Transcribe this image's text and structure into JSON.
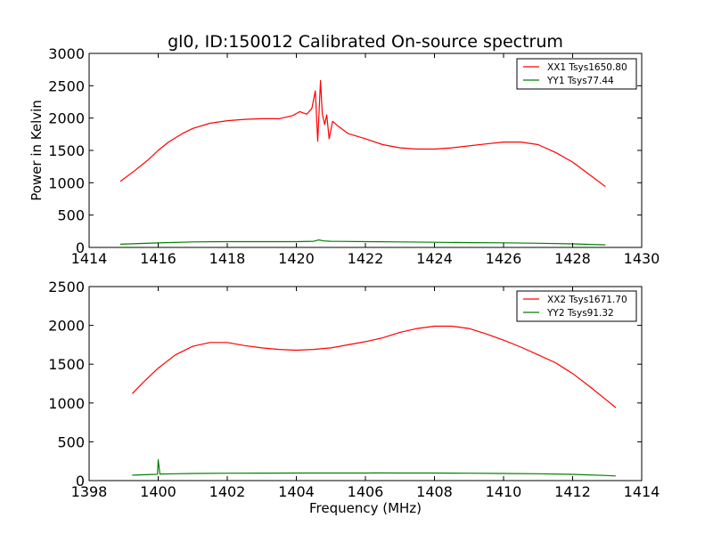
{
  "chart_data": [
    {
      "type": "line",
      "title": "gl0, ID:150012 Calibrated On-source spectrum",
      "xlabel": "",
      "ylabel": "Power in Kelvin",
      "xlim": [
        1414,
        1430
      ],
      "ylim": [
        0,
        3000
      ],
      "xticks": [
        "1414",
        "1416",
        "1418",
        "1420",
        "1422",
        "1424",
        "1426",
        "1428",
        "1430"
      ],
      "yticks": [
        "0",
        "500",
        "1000",
        "1500",
        "2000",
        "2500",
        "3000"
      ],
      "legend_position": "top-right",
      "series": [
        {
          "name": "XX1 Tsys1650.80",
          "color": "#ff0000",
          "x": [
            1414.9,
            1415.3,
            1415.7,
            1416.0,
            1416.3,
            1416.7,
            1417.0,
            1417.5,
            1418.0,
            1418.5,
            1419.0,
            1419.5,
            1419.9,
            1420.1,
            1420.3,
            1420.45,
            1420.55,
            1420.62,
            1420.7,
            1420.75,
            1420.82,
            1420.88,
            1420.95,
            1421.05,
            1421.2,
            1421.5,
            1422.0,
            1422.5,
            1423.0,
            1423.5,
            1424.0,
            1424.5,
            1425.0,
            1425.5,
            1426.0,
            1426.5,
            1427.0,
            1427.5,
            1428.0,
            1428.5,
            1428.95
          ],
          "values": [
            1020,
            1180,
            1350,
            1500,
            1630,
            1760,
            1840,
            1920,
            1960,
            1980,
            1990,
            1990,
            2040,
            2100,
            2060,
            2150,
            2420,
            1640,
            2580,
            2070,
            1900,
            2050,
            1680,
            1950,
            1880,
            1760,
            1680,
            1590,
            1540,
            1520,
            1520,
            1540,
            1570,
            1600,
            1630,
            1630,
            1590,
            1470,
            1320,
            1120,
            940
          ]
        },
        {
          "name": "YY1 Tsys77.44",
          "color": "#008000",
          "x": [
            1414.9,
            1416.0,
            1417.0,
            1418.0,
            1419.0,
            1420.0,
            1420.5,
            1420.65,
            1420.8,
            1421.0,
            1422.0,
            1423.0,
            1424.0,
            1425.0,
            1426.0,
            1427.0,
            1428.0,
            1428.95
          ],
          "values": [
            50,
            70,
            85,
            90,
            90,
            90,
            95,
            115,
            100,
            95,
            90,
            85,
            80,
            75,
            72,
            65,
            55,
            40
          ]
        }
      ]
    },
    {
      "type": "line",
      "title": "",
      "xlabel": "Frequency (MHz)",
      "ylabel": "",
      "xlim": [
        1398,
        1414
      ],
      "ylim": [
        0,
        2500
      ],
      "xticks": [
        "1398",
        "1400",
        "1402",
        "1404",
        "1406",
        "1408",
        "1410",
        "1412",
        "1414"
      ],
      "yticks": [
        "0",
        "500",
        "1000",
        "1500",
        "2000",
        "2500"
      ],
      "legend_position": "top-right",
      "series": [
        {
          "name": "XX2 Tsys1671.70",
          "color": "#ff0000",
          "x": [
            1399.25,
            1399.6,
            1400.0,
            1400.5,
            1401.0,
            1401.5,
            1402.0,
            1402.5,
            1403.0,
            1403.5,
            1404.0,
            1404.5,
            1405.0,
            1405.5,
            1406.0,
            1406.5,
            1407.0,
            1407.5,
            1408.0,
            1408.5,
            1409.0,
            1409.5,
            1410.0,
            1410.5,
            1411.0,
            1411.5,
            1412.0,
            1412.5,
            1413.0,
            1413.25
          ],
          "values": [
            1120,
            1280,
            1450,
            1620,
            1730,
            1780,
            1780,
            1740,
            1710,
            1690,
            1680,
            1690,
            1710,
            1750,
            1790,
            1840,
            1910,
            1960,
            1990,
            1990,
            1960,
            1890,
            1810,
            1720,
            1620,
            1520,
            1380,
            1210,
            1030,
            940
          ]
        },
        {
          "name": "YY2 Tsys91.32",
          "color": "#008000",
          "x": [
            1399.25,
            1399.9,
            1399.98,
            1400.0,
            1400.05,
            1400.5,
            1401.0,
            1402.0,
            1403.0,
            1404.0,
            1405.0,
            1406.0,
            1406.3,
            1407.0,
            1408.0,
            1409.0,
            1410.0,
            1411.0,
            1412.0,
            1413.0,
            1413.25
          ],
          "values": [
            70,
            80,
            82,
            270,
            85,
            88,
            92,
            95,
            96,
            97,
            98,
            98,
            100,
            98,
            97,
            95,
            92,
            88,
            80,
            65,
            60
          ]
        }
      ]
    }
  ]
}
